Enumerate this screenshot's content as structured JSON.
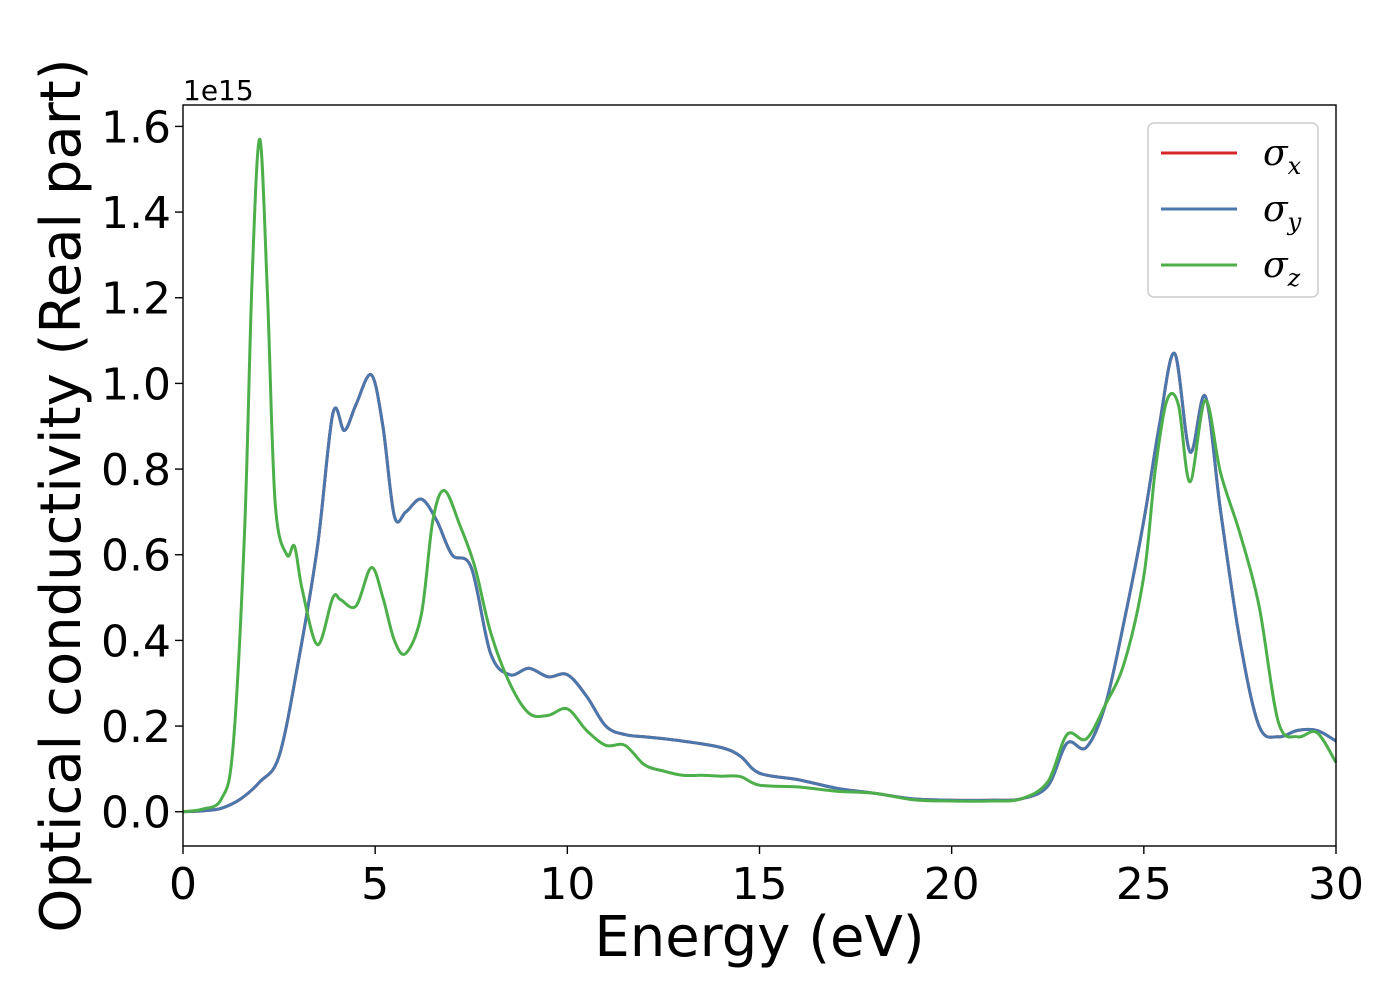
{
  "chart_data": {
    "type": "line",
    "xlabel": "Energy (eV)",
    "ylabel": "Optical conductivity (Real part)",
    "y_offset_text": "1e15",
    "xlim": [
      0,
      30
    ],
    "ylim": [
      -0.08,
      1.65
    ],
    "x_ticks": [
      0,
      5,
      10,
      15,
      20,
      25,
      30
    ],
    "x_tick_labels": [
      "0",
      "5",
      "10",
      "15",
      "20",
      "25",
      "30"
    ],
    "y_ticks": [
      0.0,
      0.2,
      0.4,
      0.6,
      0.8,
      1.0,
      1.2,
      1.4,
      1.6
    ],
    "y_tick_labels": [
      "0.0",
      "0.2",
      "0.4",
      "0.6",
      "0.8",
      "1.0",
      "1.2",
      "1.4",
      "1.6"
    ],
    "legend_position": "top-right",
    "grid": false,
    "series": [
      {
        "name": "σx",
        "label_base": "σ",
        "label_sub": "x",
        "color": "#d62728",
        "x": [
          0,
          0.5,
          1.0,
          1.5,
          2.0,
          2.5,
          3.0,
          3.5,
          3.9,
          4.2,
          4.5,
          4.9,
          5.2,
          5.5,
          5.8,
          6.2,
          6.6,
          7.0,
          7.5,
          8.0,
          8.5,
          9.0,
          9.5,
          10.0,
          10.5,
          11.0,
          11.5,
          12.0,
          13.0,
          14.0,
          14.5,
          15.0,
          16.0,
          17.0,
          18.0,
          19.0,
          20.0,
          21.0,
          21.8,
          22.5,
          23.0,
          23.5,
          24.0,
          24.5,
          25.0,
          25.4,
          25.8,
          26.2,
          26.6,
          27.0,
          27.5,
          28.0,
          28.5,
          29.0,
          29.5,
          30.0
        ],
        "y": [
          0.0,
          0.002,
          0.008,
          0.03,
          0.07,
          0.13,
          0.35,
          0.62,
          0.93,
          0.89,
          0.95,
          1.02,
          0.9,
          0.69,
          0.7,
          0.73,
          0.68,
          0.6,
          0.57,
          0.37,
          0.32,
          0.335,
          0.315,
          0.32,
          0.27,
          0.2,
          0.18,
          0.175,
          0.165,
          0.15,
          0.13,
          0.09,
          0.075,
          0.055,
          0.043,
          0.03,
          0.027,
          0.027,
          0.03,
          0.06,
          0.16,
          0.15,
          0.25,
          0.45,
          0.68,
          0.9,
          1.07,
          0.84,
          0.97,
          0.7,
          0.4,
          0.2,
          0.175,
          0.19,
          0.19,
          0.165
        ]
      },
      {
        "name": "σy",
        "label_base": "σ",
        "label_sub": "y",
        "color": "#4a78ad",
        "x": [
          0,
          0.5,
          1.0,
          1.5,
          2.0,
          2.5,
          3.0,
          3.5,
          3.9,
          4.2,
          4.5,
          4.9,
          5.2,
          5.5,
          5.8,
          6.2,
          6.6,
          7.0,
          7.5,
          8.0,
          8.5,
          9.0,
          9.5,
          10.0,
          10.5,
          11.0,
          11.5,
          12.0,
          13.0,
          14.0,
          14.5,
          15.0,
          16.0,
          17.0,
          18.0,
          19.0,
          20.0,
          21.0,
          21.8,
          22.5,
          23.0,
          23.5,
          24.0,
          24.5,
          25.0,
          25.4,
          25.8,
          26.2,
          26.6,
          27.0,
          27.5,
          28.0,
          28.5,
          29.0,
          29.5,
          30.0
        ],
        "y": [
          0.0,
          0.002,
          0.008,
          0.03,
          0.07,
          0.13,
          0.35,
          0.62,
          0.93,
          0.89,
          0.95,
          1.02,
          0.9,
          0.69,
          0.7,
          0.73,
          0.68,
          0.6,
          0.57,
          0.37,
          0.32,
          0.335,
          0.315,
          0.32,
          0.27,
          0.2,
          0.18,
          0.175,
          0.165,
          0.15,
          0.13,
          0.09,
          0.075,
          0.055,
          0.043,
          0.03,
          0.027,
          0.027,
          0.03,
          0.06,
          0.16,
          0.15,
          0.25,
          0.45,
          0.68,
          0.9,
          1.07,
          0.84,
          0.97,
          0.7,
          0.4,
          0.2,
          0.175,
          0.19,
          0.19,
          0.165
        ]
      },
      {
        "name": "σz",
        "label_base": "σ",
        "label_sub": "z",
        "color": "#4daf4a",
        "x": [
          0,
          0.5,
          1.0,
          1.3,
          1.6,
          1.8,
          2.0,
          2.2,
          2.4,
          2.7,
          2.9,
          3.1,
          3.5,
          3.9,
          4.1,
          4.5,
          4.9,
          5.2,
          5.5,
          5.8,
          6.2,
          6.5,
          6.8,
          7.2,
          7.6,
          8.0,
          8.5,
          9.0,
          9.5,
          10.0,
          10.5,
          11.0,
          11.5,
          12.0,
          12.5,
          13.0,
          13.5,
          14.0,
          14.5,
          15.0,
          16.0,
          17.0,
          18.0,
          19.0,
          20.0,
          21.0,
          21.8,
          22.5,
          23.0,
          23.5,
          24.0,
          24.5,
          25.0,
          25.3,
          25.6,
          25.9,
          26.2,
          26.6,
          27.0,
          27.5,
          28.0,
          28.5,
          29.0,
          29.5,
          30.0
        ],
        "y": [
          0.0,
          0.006,
          0.03,
          0.15,
          0.65,
          1.25,
          1.57,
          1.2,
          0.72,
          0.6,
          0.62,
          0.52,
          0.39,
          0.5,
          0.495,
          0.48,
          0.57,
          0.5,
          0.4,
          0.37,
          0.46,
          0.68,
          0.75,
          0.67,
          0.57,
          0.42,
          0.3,
          0.23,
          0.225,
          0.24,
          0.19,
          0.155,
          0.155,
          0.11,
          0.095,
          0.085,
          0.085,
          0.083,
          0.082,
          0.062,
          0.058,
          0.048,
          0.043,
          0.028,
          0.025,
          0.025,
          0.03,
          0.07,
          0.18,
          0.17,
          0.25,
          0.35,
          0.55,
          0.8,
          0.96,
          0.95,
          0.77,
          0.96,
          0.79,
          0.65,
          0.48,
          0.21,
          0.175,
          0.185,
          0.115
        ]
      }
    ]
  }
}
